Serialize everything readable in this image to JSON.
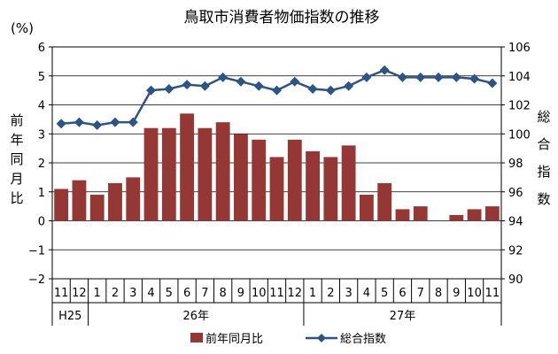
{
  "chart_data": {
    "type": "bar+line",
    "title": "鳥取市消費者物価指数の推移",
    "unit_left": "(%)",
    "ylabel_left": "前年同月比",
    "ylabel_right": "総合指数",
    "ylim_left": [
      -2,
      6
    ],
    "yticks_left": [
      "6",
      "5",
      "4",
      "3",
      "2",
      "1",
      "0",
      "−1",
      "−2"
    ],
    "ylim_right": [
      90,
      106
    ],
    "yticks_right": [
      "106",
      "104",
      "102",
      "100",
      "98",
      "96",
      "94",
      "92",
      "90"
    ],
    "months": [
      "11",
      "12",
      "1",
      "2",
      "3",
      "4",
      "5",
      "6",
      "7",
      "8",
      "9",
      "10",
      "11",
      "12",
      "1",
      "2",
      "3",
      "4",
      "5",
      "6",
      "7",
      "8",
      "9",
      "10",
      "11"
    ],
    "year_groups": [
      {
        "label": "H25",
        "start": 0,
        "end": 1
      },
      {
        "label": "26年",
        "start": 2,
        "end": 13
      },
      {
        "label": "27年",
        "start": 14,
        "end": 24
      }
    ],
    "series": [
      {
        "name": "前年同月比",
        "type": "bar",
        "axis": "left",
        "color": "#953735",
        "values": [
          1.1,
          1.4,
          0.9,
          1.3,
          1.5,
          3.2,
          3.2,
          3.7,
          3.2,
          3.4,
          3.0,
          2.8,
          2.2,
          2.8,
          2.4,
          2.2,
          2.6,
          0.9,
          1.3,
          0.4,
          0.5,
          0.0,
          0.2,
          0.4,
          0.5
        ]
      },
      {
        "name": "総合指数",
        "type": "line",
        "axis": "right",
        "color": "#2E5484",
        "values": [
          100.7,
          100.8,
          100.6,
          100.8,
          100.8,
          103.0,
          103.1,
          103.4,
          103.3,
          103.9,
          103.6,
          103.3,
          103.0,
          103.6,
          103.1,
          103.0,
          103.3,
          103.9,
          104.4,
          103.9,
          103.9,
          103.9,
          103.9,
          103.8,
          103.5
        ]
      }
    ],
    "legend_position": "bottom"
  }
}
